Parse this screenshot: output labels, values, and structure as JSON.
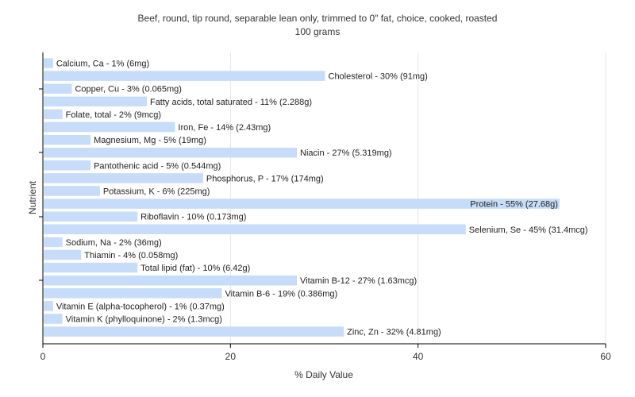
{
  "chart_data": {
    "type": "bar",
    "orientation": "horizontal",
    "title": "Beef, round, tip round, separable lean only, trimmed to 0\" fat, choice, cooked, roasted",
    "subtitle": "100 grams",
    "xlabel": "% Daily Value",
    "ylabel": "Nutrient",
    "xlim": [
      0,
      60
    ],
    "xticks": [
      0,
      20,
      40,
      60
    ],
    "grid": true,
    "bar_color": "#c6dcf8",
    "categories": [
      "Calcium, Ca",
      "Cholesterol",
      "Copper, Cu",
      "Fatty acids, total saturated",
      "Folate, total",
      "Iron, Fe",
      "Magnesium, Mg",
      "Niacin",
      "Pantothenic acid",
      "Phosphorus, P",
      "Potassium, K",
      "Protein",
      "Riboflavin",
      "Selenium, Se",
      "Sodium, Na",
      "Thiamin",
      "Total lipid (fat)",
      "Vitamin B-12",
      "Vitamin B-6",
      "Vitamin E (alpha-tocopherol)",
      "Vitamin K (phylloquinone)",
      "Zinc, Zn"
    ],
    "values": [
      1,
      30,
      3,
      11,
      2,
      14,
      5,
      27,
      5,
      17,
      6,
      55,
      10,
      45,
      2,
      4,
      10,
      27,
      19,
      1,
      2,
      32
    ],
    "labels": [
      "Calcium, Ca - 1% (6mg)",
      "Cholesterol - 30% (91mg)",
      "Copper, Cu - 3% (0.065mg)",
      "Fatty acids, total saturated - 11% (2.288g)",
      "Folate, total - 2% (9mcg)",
      "Iron, Fe - 14% (2.43mg)",
      "Magnesium, Mg - 5% (19mg)",
      "Niacin - 27% (5.319mg)",
      "Pantothenic acid - 5% (0.544mg)",
      "Phosphorus, P - 17% (174mg)",
      "Potassium, K - 6% (225mg)",
      "Protein - 55% (27.68g)",
      "Riboflavin - 10% (0.173mg)",
      "Selenium, Se - 45% (31.4mcg)",
      "Sodium, Na - 2% (36mg)",
      "Thiamin - 4% (0.058mg)",
      "Total lipid (fat) - 10% (6.42g)",
      "Vitamin B-12 - 27% (1.63mcg)",
      "Vitamin B-6 - 19% (0.386mg)",
      "Vitamin E (alpha-tocopherol) - 1% (0.37mg)",
      "Vitamin K (phylloquinone) - 2% (1.3mcg)",
      "Zinc, Zn - 32% (4.81mg)"
    ]
  }
}
